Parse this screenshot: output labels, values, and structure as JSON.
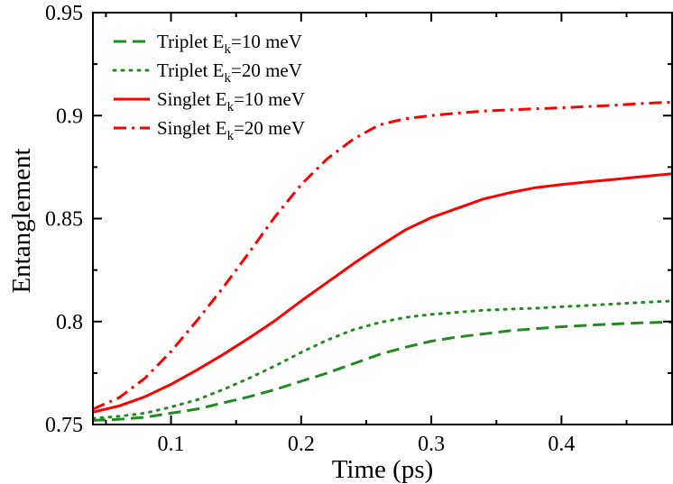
{
  "chart_data": {
    "type": "line",
    "title": "",
    "xlabel": "Time (ps)",
    "ylabel": "Entanglement",
    "xlim": [
      0.04,
      0.485
    ],
    "ylim": [
      0.75,
      0.95
    ],
    "xticks": [
      0.1,
      0.2,
      0.3,
      0.4
    ],
    "xtick_labels": [
      "0.1",
      "0.2",
      "0.3",
      "0.4"
    ],
    "yticks": [
      0.75,
      0.8,
      0.85,
      0.9,
      0.95
    ],
    "ytick_labels": [
      "0.75",
      "0.8",
      "0.85",
      "0.9",
      "0.95"
    ],
    "grid": false,
    "legend_position": "top-left",
    "x": [
      0.04,
      0.06,
      0.08,
      0.1,
      0.12,
      0.14,
      0.16,
      0.18,
      0.2,
      0.22,
      0.24,
      0.26,
      0.28,
      0.3,
      0.32,
      0.34,
      0.36,
      0.38,
      0.4,
      0.42,
      0.44,
      0.46,
      0.485
    ],
    "series": [
      {
        "name_main": "Triplet E",
        "name_sub": "k",
        "name_rest": "=10 meV",
        "color": "#228B22",
        "dash": "dashed",
        "values": [
          0.752,
          0.7525,
          0.7535,
          0.7555,
          0.7575,
          0.7605,
          0.7635,
          0.767,
          0.771,
          0.775,
          0.7795,
          0.784,
          0.7875,
          0.7905,
          0.7925,
          0.794,
          0.7955,
          0.7965,
          0.7975,
          0.7982,
          0.7988,
          0.7993,
          0.7998
        ]
      },
      {
        "name_main": "Triplet E",
        "name_sub": "k",
        "name_rest": "=20 meV",
        "color": "#228B22",
        "dash": "dotted",
        "values": [
          0.753,
          0.754,
          0.7555,
          0.7585,
          0.762,
          0.767,
          0.7725,
          0.7785,
          0.785,
          0.791,
          0.796,
          0.7995,
          0.802,
          0.8035,
          0.8045,
          0.8055,
          0.806,
          0.8065,
          0.8072,
          0.8078,
          0.8085,
          0.8092,
          0.81
        ]
      },
      {
        "name_main": "Singlet E",
        "name_sub": "k",
        "name_rest": "=10 meV",
        "color": "#ff0000",
        "dash": "solid",
        "values": [
          0.756,
          0.759,
          0.7635,
          0.7695,
          0.7765,
          0.784,
          0.792,
          0.8005,
          0.81,
          0.819,
          0.828,
          0.8365,
          0.8445,
          0.8505,
          0.855,
          0.8595,
          0.8625,
          0.865,
          0.8665,
          0.8678,
          0.869,
          0.8702,
          0.8718
        ]
      },
      {
        "name_main": "Singlet E",
        "name_sub": "k",
        "name_rest": "=20 meV",
        "color": "#ff0000",
        "dash": "dash-dot",
        "values": [
          0.7575,
          0.763,
          0.7725,
          0.7855,
          0.8005,
          0.8165,
          0.8335,
          0.851,
          0.8665,
          0.879,
          0.8885,
          0.8955,
          0.8985,
          0.9,
          0.9012,
          0.9022,
          0.9028,
          0.9033,
          0.9038,
          0.9044,
          0.905,
          0.9058,
          0.9066
        ]
      }
    ]
  }
}
